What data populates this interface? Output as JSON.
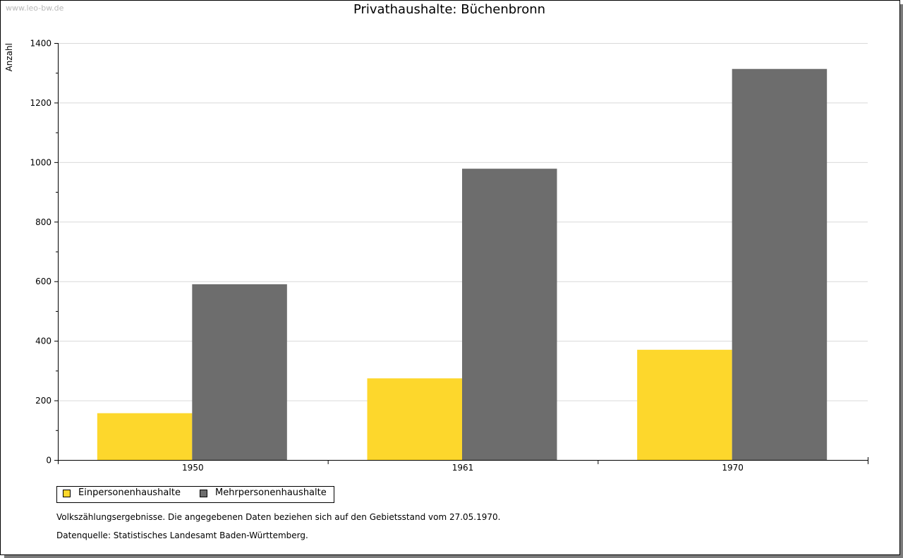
{
  "watermark": "www.leo-bw.de",
  "chart_data": {
    "type": "bar",
    "title": "Privathaushalte: Büchenbronn",
    "ylabel": "Anzahl",
    "xlabel": "",
    "ylim": [
      0,
      1400
    ],
    "yticks": [
      0,
      200,
      400,
      600,
      800,
      1000,
      1200,
      1400
    ],
    "categories": [
      "1950",
      "1961",
      "1970"
    ],
    "series": [
      {
        "name": "Einpersonenhaushalte",
        "color": "#fdd72c",
        "values": [
          157,
          274,
          370
        ]
      },
      {
        "name": "Mehrpersonenhaushalte",
        "color": "#6d6d6d",
        "values": [
          590,
          978,
          1313
        ]
      }
    ],
    "grid": true,
    "legend_position": "bottom-left"
  },
  "notes": {
    "census": "Volkszählungsergebnisse. Die angegebenen Daten beziehen sich auf den Gebietsstand vom 27.05.1970.",
    "source": "Datenquelle: Statistisches Landesamt Baden-Württemberg."
  }
}
